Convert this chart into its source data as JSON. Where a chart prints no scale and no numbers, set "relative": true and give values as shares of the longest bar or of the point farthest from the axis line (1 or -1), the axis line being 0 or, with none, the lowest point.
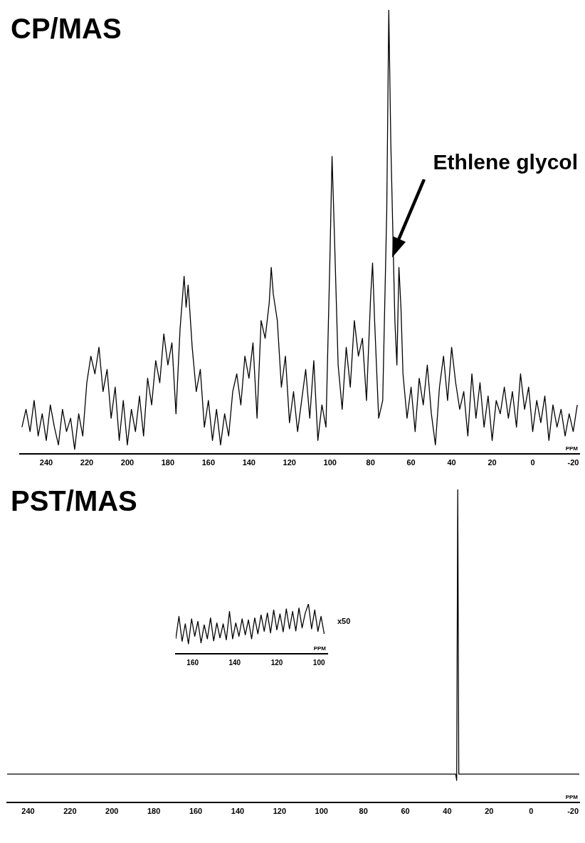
{
  "chart_data": [
    {
      "type": "line",
      "title": "CP/MAS",
      "xlabel": "PPM",
      "relative": true,
      "xlim": [
        253,
        -23
      ],
      "xticks": [
        240,
        220,
        200,
        180,
        160,
        140,
        120,
        100,
        80,
        60,
        40,
        20,
        0,
        -20
      ],
      "marker": "none",
      "annotations": [
        "Ethlene glycol"
      ],
      "series": [
        {
          "color": "#000000",
          "x": [
            252,
            250,
            248,
            246,
            244,
            242,
            240,
            238,
            236,
            234,
            232,
            230,
            228,
            226,
            224,
            222,
            220,
            218,
            216,
            214,
            212,
            210,
            208,
            206,
            204,
            202,
            200,
            198,
            196,
            194,
            192,
            190,
            188,
            186,
            184,
            182,
            180,
            178,
            176,
            174,
            172,
            171,
            170,
            168,
            166,
            164,
            162,
            160,
            158,
            156,
            154,
            152,
            150,
            148,
            146,
            144,
            142,
            140,
            138,
            136,
            134,
            132,
            130,
            129,
            128,
            126,
            124,
            122,
            120,
            118,
            116,
            114,
            112,
            110,
            108,
            106,
            104,
            102,
            100,
            99,
            98,
            96,
            94,
            92,
            90,
            88,
            86,
            84,
            82,
            80,
            79,
            78,
            76,
            74,
            72,
            71,
            70,
            68,
            67,
            66,
            65,
            64,
            62,
            60,
            58,
            56,
            54,
            52,
            50,
            48,
            46,
            44,
            42,
            40,
            38,
            36,
            34,
            32,
            30,
            28,
            26,
            24,
            22,
            20,
            18,
            16,
            14,
            12,
            10,
            8,
            6,
            4,
            2,
            0,
            -2,
            -4,
            -6,
            -8,
            -10,
            -12,
            -14,
            -16,
            -18,
            -20,
            -22
          ],
          "values": [
            0.06,
            0.1,
            0.05,
            0.12,
            0.04,
            0.09,
            0.03,
            0.11,
            0.06,
            0.02,
            0.1,
            0.05,
            0.08,
            0.01,
            0.09,
            0.04,
            0.16,
            0.22,
            0.18,
            0.24,
            0.14,
            0.19,
            0.08,
            0.15,
            0.03,
            0.12,
            0.02,
            0.1,
            0.05,
            0.13,
            0.04,
            0.17,
            0.11,
            0.21,
            0.16,
            0.27,
            0.2,
            0.25,
            0.09,
            0.28,
            0.4,
            0.33,
            0.38,
            0.24,
            0.14,
            0.19,
            0.06,
            0.12,
            0.03,
            0.1,
            0.02,
            0.09,
            0.04,
            0.14,
            0.18,
            0.11,
            0.22,
            0.17,
            0.25,
            0.08,
            0.3,
            0.26,
            0.34,
            0.42,
            0.36,
            0.3,
            0.15,
            0.22,
            0.07,
            0.14,
            0.05,
            0.12,
            0.19,
            0.08,
            0.21,
            0.03,
            0.11,
            0.06,
            0.45,
            0.67,
            0.52,
            0.2,
            0.1,
            0.24,
            0.15,
            0.3,
            0.22,
            0.26,
            0.12,
            0.35,
            0.43,
            0.3,
            0.08,
            0.12,
            0.55,
            1.0,
            0.7,
            0.3,
            0.2,
            0.42,
            0.33,
            0.18,
            0.08,
            0.15,
            0.05,
            0.17,
            0.11,
            0.2,
            0.09,
            0.02,
            0.15,
            0.22,
            0.12,
            0.24,
            0.16,
            0.1,
            0.14,
            0.04,
            0.18,
            0.08,
            0.16,
            0.06,
            0.13,
            0.03,
            0.12,
            0.09,
            0.15,
            0.08,
            0.14,
            0.06,
            0.18,
            0.1,
            0.15,
            0.05,
            0.12,
            0.07,
            0.13,
            0.03,
            0.11,
            0.06,
            0.1,
            0.04,
            0.09,
            0.05,
            0.11
          ]
        }
      ]
    },
    {
      "type": "line",
      "title": "PST/MAS",
      "xlabel": "PPM",
      "relative": true,
      "xlim": [
        250,
        -23
      ],
      "xticks": [
        240,
        220,
        200,
        180,
        160,
        140,
        120,
        100,
        80,
        60,
        40,
        20,
        0,
        -20
      ],
      "marker": "none",
      "series": [
        {
          "color": "#000000",
          "x": [
            250,
            36,
            35.5,
            35,
            34.5,
            -23
          ],
          "values": [
            0.09,
            0.09,
            0.07,
            1.0,
            0.09,
            0.09
          ]
        }
      ]
    },
    {
      "type": "line",
      "xlabel": "PPM",
      "relative": true,
      "xlim": [
        168,
        96
      ],
      "xticks": [
        160,
        140,
        120,
        100
      ],
      "marker": "none",
      "annotations": [
        "x50"
      ],
      "series": [
        {
          "color": "#000000",
          "x": [
            168,
            166.5,
            165,
            163.5,
            162,
            160.5,
            159,
            157.5,
            156,
            154.5,
            153,
            151.5,
            150,
            148.5,
            147,
            145.5,
            144,
            142.5,
            141,
            139.5,
            138,
            136.5,
            135,
            133.5,
            132,
            130.5,
            129,
            127.5,
            126,
            124.5,
            123,
            121.5,
            120,
            118.5,
            117,
            115.5,
            114,
            112.5,
            111,
            109.5,
            108,
            106.5,
            105,
            103.5,
            102,
            100.5,
            99,
            97.5
          ],
          "values": [
            0.3,
            0.75,
            0.25,
            0.6,
            0.2,
            0.7,
            0.35,
            0.65,
            0.22,
            0.58,
            0.3,
            0.72,
            0.26,
            0.62,
            0.32,
            0.6,
            0.28,
            0.85,
            0.3,
            0.62,
            0.35,
            0.7,
            0.38,
            0.68,
            0.3,
            0.72,
            0.4,
            0.78,
            0.45,
            0.82,
            0.42,
            0.88,
            0.48,
            0.8,
            0.44,
            0.9,
            0.5,
            0.85,
            0.46,
            0.92,
            0.52,
            0.82,
            1.0,
            0.5,
            0.88,
            0.45,
            0.75,
            0.4
          ]
        }
      ]
    }
  ]
}
